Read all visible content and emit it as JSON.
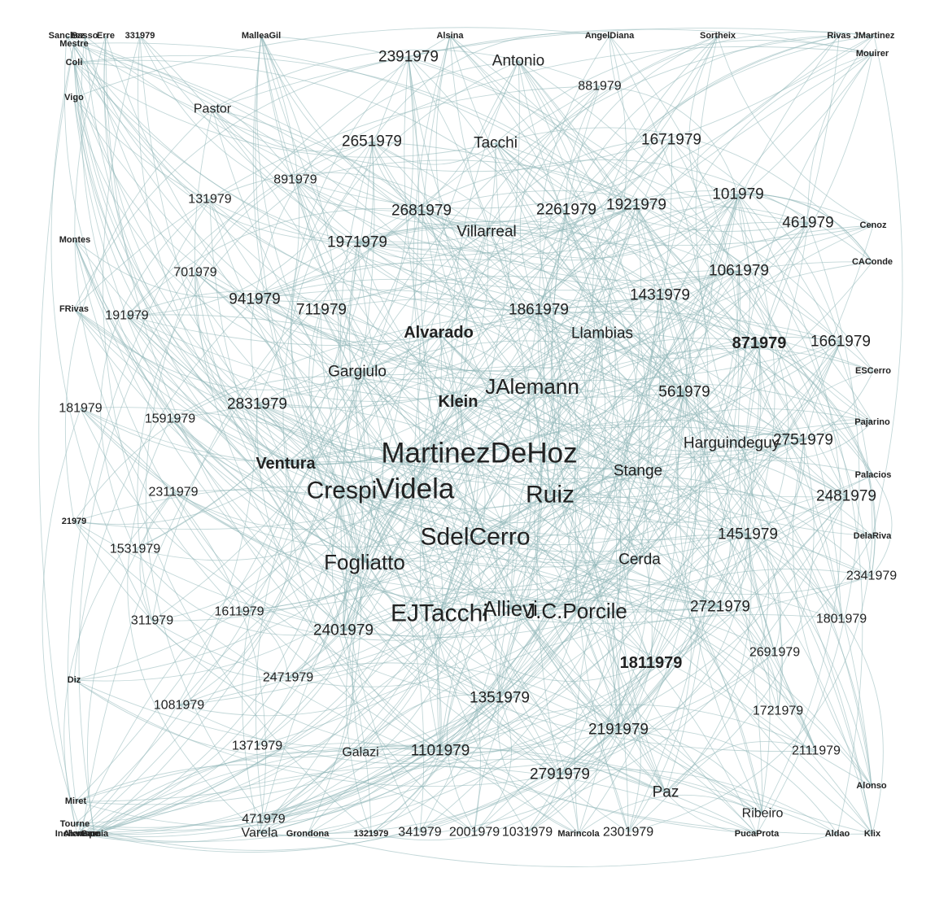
{
  "graph": {
    "edge_color": "#8fb6b8",
    "text_color": "#222222",
    "nodes": [
      {
        "label": "MartinezDeHoz",
        "weight": 6
      },
      {
        "label": "Videla",
        "weight": 6
      },
      {
        "label": "Crespi",
        "weight": 5
      },
      {
        "label": "Ruiz",
        "weight": 5
      },
      {
        "label": "SdelCerro",
        "weight": 5
      },
      {
        "label": "EJTacchi",
        "weight": 5
      },
      {
        "label": "Allievi",
        "weight": 4
      },
      {
        "label": "J.C.Porcile",
        "weight": 4
      },
      {
        "label": "JAlemann",
        "weight": 4
      },
      {
        "label": "Fogliatto",
        "weight": 4
      },
      {
        "label": "Alvarado",
        "weight": 3
      },
      {
        "label": "Klein",
        "weight": 3
      },
      {
        "label": "Ventura",
        "weight": 3
      },
      {
        "label": "871979",
        "weight": 3
      },
      {
        "label": "1811979",
        "weight": 3
      },
      {
        "label": "Antonio",
        "weight": 2
      },
      {
        "label": "Tacchi",
        "weight": 2
      },
      {
        "label": "1671979",
        "weight": 2
      },
      {
        "label": "Villarreal",
        "weight": 2
      },
      {
        "label": "Llambias",
        "weight": 2
      },
      {
        "label": "Gargiulo",
        "weight": 2
      },
      {
        "label": "561979",
        "weight": 2
      },
      {
        "label": "Harguindeguy",
        "weight": 2
      },
      {
        "label": "Stange",
        "weight": 2
      },
      {
        "label": "Cerda",
        "weight": 2
      },
      {
        "label": "2391979",
        "weight": 2
      },
      {
        "label": "2651979",
        "weight": 2
      },
      {
        "label": "2261979",
        "weight": 2
      },
      {
        "label": "1921979",
        "weight": 2
      },
      {
        "label": "101979",
        "weight": 2
      },
      {
        "label": "461979",
        "weight": 2
      },
      {
        "label": "1061979",
        "weight": 2
      },
      {
        "label": "1431979",
        "weight": 2
      },
      {
        "label": "1861979",
        "weight": 2
      },
      {
        "label": "1661979",
        "weight": 2
      },
      {
        "label": "2751979",
        "weight": 2
      },
      {
        "label": "2481979",
        "weight": 2
      },
      {
        "label": "1451979",
        "weight": 2
      },
      {
        "label": "2721979",
        "weight": 2
      },
      {
        "label": "2401979",
        "weight": 2
      },
      {
        "label": "2831979",
        "weight": 2
      },
      {
        "label": "1971979",
        "weight": 2
      },
      {
        "label": "2681979",
        "weight": 2
      },
      {
        "label": "711979",
        "weight": 2
      },
      {
        "label": "941979",
        "weight": 2
      },
      {
        "label": "1351979",
        "weight": 2
      },
      {
        "label": "2191979",
        "weight": 2
      },
      {
        "label": "1101979",
        "weight": 2
      },
      {
        "label": "2791979",
        "weight": 2
      },
      {
        "label": "Paz",
        "weight": 2
      },
      {
        "label": "881979",
        "weight": 1
      },
      {
        "label": "891979",
        "weight": 1
      },
      {
        "label": "131979",
        "weight": 1
      },
      {
        "label": "Pastor",
        "weight": 1
      },
      {
        "label": "701979",
        "weight": 1
      },
      {
        "label": "191979",
        "weight": 1
      },
      {
        "label": "181979",
        "weight": 1
      },
      {
        "label": "1591979",
        "weight": 1
      },
      {
        "label": "2311979",
        "weight": 1
      },
      {
        "label": "1531979",
        "weight": 1
      },
      {
        "label": "311979",
        "weight": 1
      },
      {
        "label": "1611979",
        "weight": 1
      },
      {
        "label": "2471979",
        "weight": 1
      },
      {
        "label": "1081979",
        "weight": 1
      },
      {
        "label": "1371979",
        "weight": 1
      },
      {
        "label": "Galazi",
        "weight": 1
      },
      {
        "label": "471979",
        "weight": 1
      },
      {
        "label": "Varela",
        "weight": 1
      },
      {
        "label": "341979",
        "weight": 1
      },
      {
        "label": "2001979",
        "weight": 1
      },
      {
        "label": "1031979",
        "weight": 1
      },
      {
        "label": "2301979",
        "weight": 1
      },
      {
        "label": "Ribeiro",
        "weight": 1
      },
      {
        "label": "1721979",
        "weight": 1
      },
      {
        "label": "2691979",
        "weight": 1
      },
      {
        "label": "1801979",
        "weight": 1
      },
      {
        "label": "2111979",
        "weight": 1
      },
      {
        "label": "2341979",
        "weight": 1
      },
      {
        "label": "Alsina",
        "weight": 0
      },
      {
        "label": "MalleaGil",
        "weight": 0
      },
      {
        "label": "AngelDiana",
        "weight": 0
      },
      {
        "label": "Sortheix",
        "weight": 0
      },
      {
        "label": "Rivas",
        "weight": 0
      },
      {
        "label": "JMartinez",
        "weight": 0
      },
      {
        "label": "Mouirer",
        "weight": 0
      },
      {
        "label": "Cenoz",
        "weight": 0
      },
      {
        "label": "CAConde",
        "weight": 0
      },
      {
        "label": "ESCerro",
        "weight": 0
      },
      {
        "label": "Pajarino",
        "weight": 0
      },
      {
        "label": "Palacios",
        "weight": 0
      },
      {
        "label": "DelaRiva",
        "weight": 0
      },
      {
        "label": "Alonso",
        "weight": 0
      },
      {
        "label": "Aldao",
        "weight": 0
      },
      {
        "label": "Klix",
        "weight": 0
      },
      {
        "label": "PucaProta",
        "weight": 0
      },
      {
        "label": "Marincola",
        "weight": 0
      },
      {
        "label": "1321979",
        "weight": 0
      },
      {
        "label": "Grondona",
        "weight": 0
      },
      {
        "label": "Tourne",
        "weight": 0
      },
      {
        "label": "Inchauspe",
        "weight": 0
      },
      {
        "label": "Alemann",
        "weight": 0
      },
      {
        "label": "Garcia",
        "weight": 0
      },
      {
        "label": "Miret",
        "weight": 0
      },
      {
        "label": "Diz",
        "weight": 0
      },
      {
        "label": "21979",
        "weight": 0
      },
      {
        "label": "FRivas",
        "weight": 0
      },
      {
        "label": "Montes",
        "weight": 0
      },
      {
        "label": "Vigo",
        "weight": 0
      },
      {
        "label": "Coli",
        "weight": 0
      },
      {
        "label": "Mestre",
        "weight": 0
      },
      {
        "label": "Sanchez",
        "weight": 0
      },
      {
        "label": "Basso",
        "weight": 0
      },
      {
        "label": "Erre",
        "weight": 0
      },
      {
        "label": "331979",
        "weight": 0
      }
    ]
  }
}
